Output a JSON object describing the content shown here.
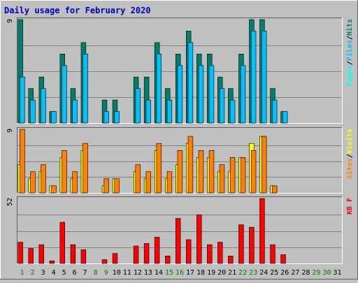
{
  "title": "Daily usage for February 2020",
  "colors": {
    "background": "#c0c0c0",
    "panel": "#c0c0c0",
    "frame_dark": "#606060",
    "frame_light": "#ffffff",
    "title_text": "#0000c0",
    "grid": "#808080",
    "hits": "#00806c",
    "files": "#00c0ff",
    "pages": "#00ffff",
    "visits": "#ffff00",
    "sites": "#ff8000",
    "kbytes": "#ff0000",
    "weekend_text": "#008000",
    "weekday_text": "#000000",
    "axis_text": "#000000"
  },
  "chart_data": [
    {
      "type": "bar",
      "title": "Daily usage for February 2020",
      "categories": [
        "1",
        "2",
        "3",
        "4",
        "5",
        "6",
        "7",
        "8",
        "9",
        "10",
        "11",
        "12",
        "13",
        "14",
        "15",
        "16",
        "17",
        "18",
        "19",
        "20",
        "21",
        "22",
        "23",
        "24",
        "25",
        "26",
        "27",
        "28",
        "29",
        "30",
        "31"
      ],
      "weekend_days": [
        "1",
        "2",
        "8",
        "9",
        "15",
        "16",
        "22",
        "23",
        "29",
        "30"
      ],
      "ymax_label": "9",
      "ylim": [
        0,
        9
      ],
      "legend": [
        {
          "text": "Pages",
          "color_key": "pages"
        },
        {
          "text": "/",
          "color_key": "axis_text"
        },
        {
          "text": "Files",
          "color_key": "files"
        },
        {
          "text": "/",
          "color_key": "axis_text"
        },
        {
          "text": "Hits",
          "color_key": "hits"
        }
      ],
      "series": [
        {
          "name": "Hits",
          "color_key": "hits",
          "values": [
            9,
            3,
            4,
            1,
            6,
            3,
            7,
            0,
            2,
            2,
            0,
            4,
            4,
            7,
            3,
            6,
            8,
            6,
            6,
            4,
            3,
            6,
            9,
            9,
            3,
            1,
            0,
            0,
            0,
            0,
            0
          ]
        },
        {
          "name": "Files",
          "color_key": "files",
          "values": [
            4,
            2,
            3,
            1,
            5,
            2,
            6,
            0,
            1,
            1,
            0,
            3,
            2,
            6,
            2,
            5,
            7,
            5,
            5,
            3,
            2,
            5,
            8,
            8,
            2,
            1,
            0,
            0,
            0,
            0,
            0
          ]
        },
        {
          "name": "Pages",
          "color_key": "pages",
          "values": [
            0,
            0,
            0,
            0,
            0,
            0,
            0,
            0,
            0,
            0,
            0,
            0,
            0,
            0,
            0,
            0,
            0,
            0,
            0,
            0,
            0,
            0,
            0,
            0,
            0,
            0,
            0,
            0,
            0,
            0,
            0
          ]
        }
      ]
    },
    {
      "type": "bar",
      "ymax_label": "9",
      "ylim": [
        0,
        9
      ],
      "legend": [
        {
          "text": "Sites",
          "color_key": "sites"
        },
        {
          "text": "/",
          "color_key": "axis_text"
        },
        {
          "text": "Visits",
          "color_key": "visits"
        }
      ],
      "series": [
        {
          "name": "Visits",
          "color_key": "visits",
          "values": [
            4,
            2,
            3,
            1,
            5,
            2,
            6,
            0,
            1,
            2,
            0,
            3,
            2,
            6,
            2,
            4,
            7,
            5,
            5,
            3,
            3,
            5,
            7,
            8,
            1,
            0,
            0,
            0,
            0,
            0,
            0
          ]
        },
        {
          "name": "Sites",
          "color_key": "sites",
          "values": [
            9,
            3,
            4,
            1,
            6,
            3,
            7,
            0,
            2,
            2,
            0,
            4,
            3,
            7,
            3,
            6,
            8,
            6,
            6,
            4,
            5,
            5,
            6,
            8,
            1,
            0,
            0,
            0,
            0,
            0,
            0
          ]
        }
      ]
    },
    {
      "type": "bar",
      "ymax_label": "52",
      "ylim": [
        0,
        52
      ],
      "legend": [
        {
          "text": "KB F",
          "color_key": "kbytes"
        }
      ],
      "series": [
        {
          "name": "KB F",
          "color_key": "kbytes",
          "values": [
            17,
            12,
            15,
            2,
            33,
            15,
            11,
            0,
            3,
            8,
            0,
            14,
            16,
            21,
            6,
            36,
            19,
            39,
            15,
            17,
            6,
            31,
            29,
            52,
            15,
            7,
            0,
            0,
            0,
            0,
            0
          ]
        }
      ]
    }
  ]
}
